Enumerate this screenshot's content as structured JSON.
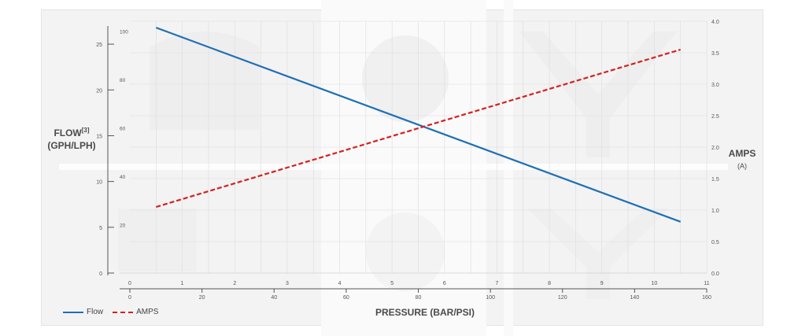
{
  "chart_data": {
    "type": "line",
    "xlabel": "PRESSURE (BAR/PSI)",
    "x_ticks_bar": [
      "0",
      "1",
      "2",
      "3",
      "4",
      "5",
      "6",
      "7",
      "8",
      "9",
      "10",
      "11"
    ],
    "x_ticks_psi": [
      "0",
      "20",
      "40",
      "60",
      "80",
      "100",
      "120",
      "140",
      "160"
    ],
    "xlim_bar": [
      0,
      11
    ],
    "xlim_psi": [
      0,
      160
    ],
    "y_left_title": "FLOW",
    "y_left_superscript": "[3]",
    "y_left_unit": "(GPH/LPH)",
    "y_left_ticks_gph": [
      "0",
      "5",
      "10",
      "15",
      "20",
      "25"
    ],
    "y_left_ticks_lph": [
      "20",
      "40",
      "60",
      "80",
      "100"
    ],
    "ylim_gph": [
      0,
      27.5
    ],
    "y_right_title": "AMPS",
    "y_right_unit": "(A)",
    "y_right_ticks": [
      "0.0",
      "0.5",
      "1.0",
      "1.5",
      "2.0",
      "2.5",
      "3.0",
      "3.5",
      "4.0"
    ],
    "ylim_right": [
      0,
      4.0
    ],
    "grid": true,
    "legend_position": "bottom-left",
    "series": [
      {
        "name": "Flow",
        "axis": "left",
        "color": "#1f6fb5",
        "dash": false,
        "x": [
          0.5,
          10.5
        ],
        "y": [
          26.8,
          5.6
        ]
      },
      {
        "name": "AMPS",
        "axis": "right",
        "color": "#d62020",
        "dash": true,
        "x": [
          0.5,
          10.5
        ],
        "y": [
          1.05,
          3.55
        ]
      }
    ]
  }
}
